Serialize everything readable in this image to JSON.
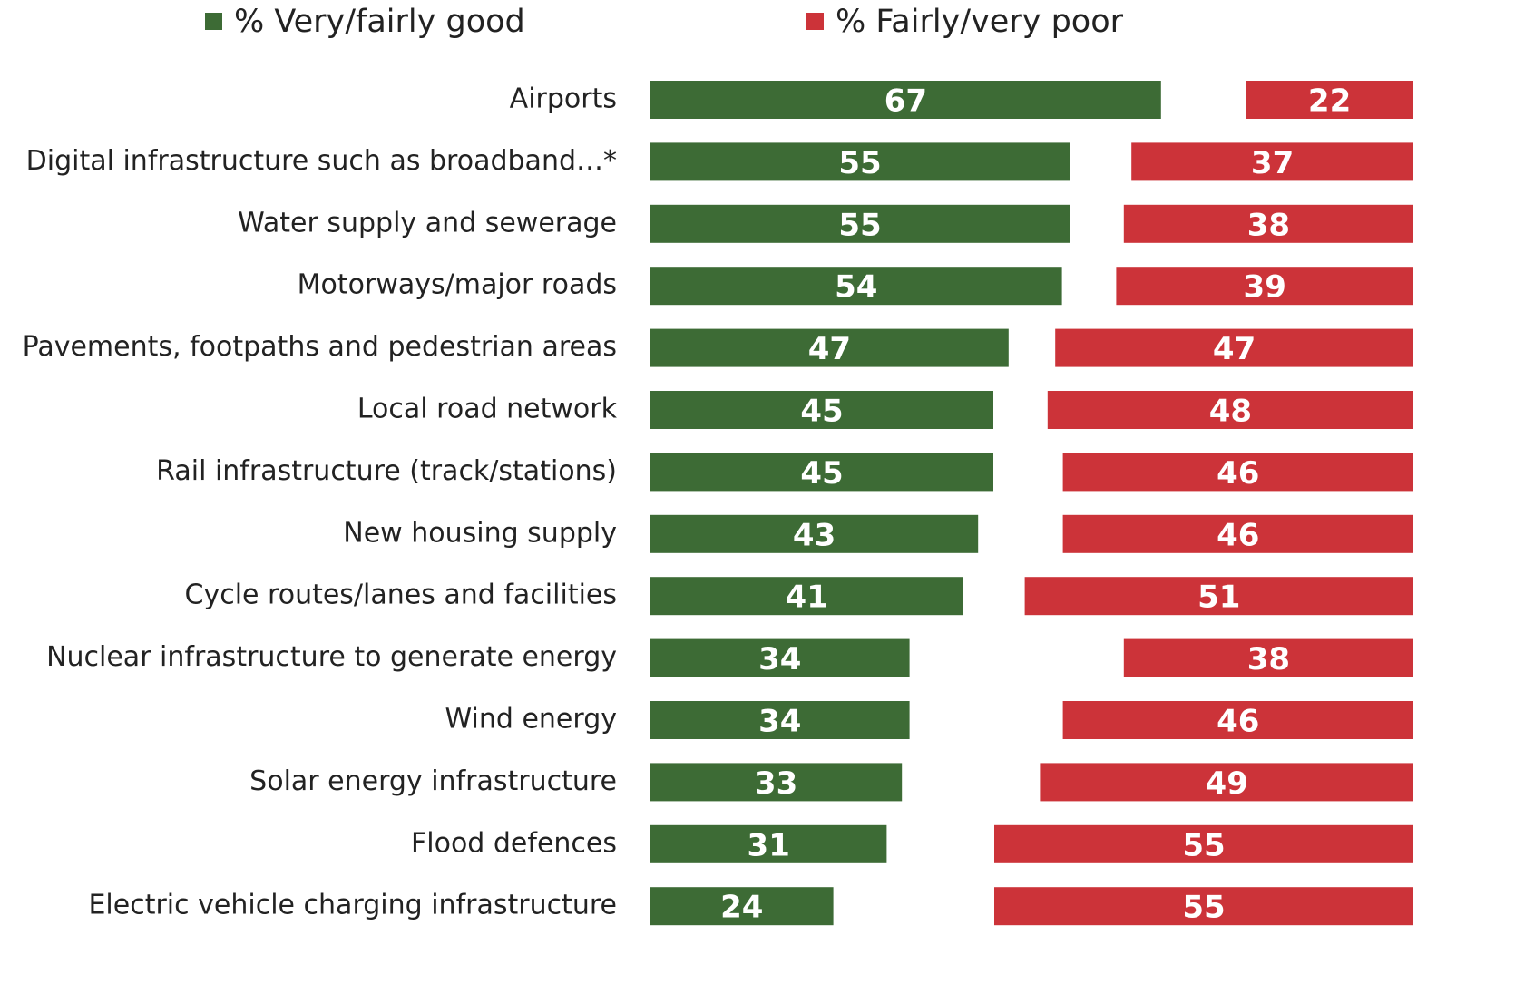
{
  "chart_data": {
    "type": "bar",
    "categories": [
      "Airports",
      "Digital infrastructure such as broadband…*",
      "Water supply and sewerage",
      "Motorways/major roads",
      "Pavements, footpaths and pedestrian areas",
      "Local road network",
      "Rail infrastructure (track/stations)",
      "New housing supply",
      "Cycle routes/lanes and facilities",
      "Nuclear infrastructure to generate energy",
      "Wind energy",
      "Solar energy infrastructure",
      "Flood defences",
      "Electric vehicle charging infrastructure"
    ],
    "series": [
      {
        "name": "% Very/fairly good",
        "color": "#3d6b35",
        "values": [
          67,
          55,
          55,
          54,
          47,
          45,
          45,
          43,
          41,
          34,
          34,
          33,
          31,
          24
        ]
      },
      {
        "name": "% Fairly/very poor",
        "color": "#cc3339",
        "values": [
          22,
          37,
          38,
          39,
          47,
          48,
          46,
          46,
          51,
          38,
          46,
          49,
          55,
          55
        ]
      }
    ]
  }
}
